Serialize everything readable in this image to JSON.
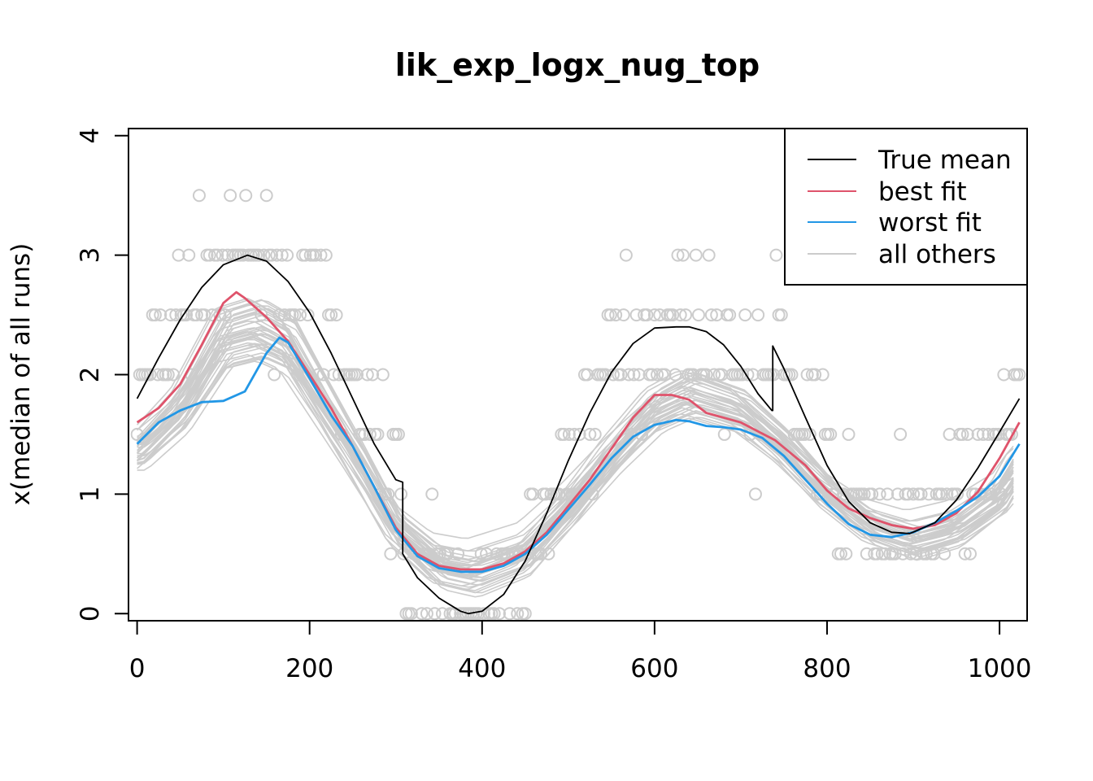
{
  "chart_data": {
    "type": "line",
    "title": "lik_exp_logx_nug_top",
    "xlabel": "",
    "ylabel": "x(median of all runs)",
    "xlim": [
      -10,
      1032
    ],
    "ylim": [
      -0.06,
      4.06
    ],
    "x_ticks": [
      "0",
      "200",
      "400",
      "600",
      "800",
      "1000"
    ],
    "y_ticks": [
      "0",
      "1",
      "2",
      "3",
      "4"
    ],
    "x_tick_values": [
      0,
      200,
      400,
      600,
      800,
      1000
    ],
    "y_tick_values": [
      0,
      1,
      2,
      3,
      4
    ],
    "grid": false,
    "legend_position": "top-right",
    "colors": {
      "true_mean": "#000000",
      "best_fit": "#DF536B",
      "worst_fit": "#2297E6",
      "others": "#CCCCCC",
      "points": "#CCCCCC"
    },
    "legend": [
      {
        "name": "True mean",
        "color": "#000000"
      },
      {
        "name": "best fit",
        "color": "#DF536B"
      },
      {
        "name": "worst fit",
        "color": "#2297E6"
      },
      {
        "name": "all others",
        "color": "#CCCCCC"
      }
    ],
    "series": [
      {
        "name": "True mean",
        "x": [
          0,
          25,
          50,
          75,
          100,
          128,
          150,
          175,
          200,
          225,
          250,
          275,
          300,
          308,
          308,
          325,
          350,
          375,
          384,
          400,
          425,
          450,
          475,
          500,
          525,
          550,
          575,
          600,
          625,
          640,
          660,
          680,
          700,
          720,
          736,
          737,
          737,
          750,
          775,
          800,
          825,
          850,
          875,
          896,
          925,
          950,
          975,
          1000,
          1023
        ],
        "y": [
          1.8,
          2.14,
          2.46,
          2.73,
          2.92,
          3.0,
          2.95,
          2.78,
          2.52,
          2.18,
          1.8,
          1.42,
          1.12,
          1.1,
          0.5,
          0.3,
          0.13,
          0.02,
          0.0,
          0.02,
          0.16,
          0.44,
          0.84,
          1.28,
          1.68,
          2.02,
          2.26,
          2.39,
          2.4,
          2.4,
          2.36,
          2.25,
          2.07,
          1.84,
          1.7,
          1.7,
          2.24,
          2.05,
          1.64,
          1.24,
          0.94,
          0.76,
          0.68,
          0.67,
          0.76,
          0.95,
          1.22,
          1.52,
          1.8
        ]
      },
      {
        "name": "best fit",
        "x": [
          0,
          25,
          50,
          75,
          100,
          115,
          125,
          150,
          175,
          200,
          225,
          250,
          275,
          300,
          325,
          350,
          375,
          400,
          425,
          450,
          475,
          500,
          525,
          550,
          575,
          600,
          620,
          640,
          660,
          700,
          740,
          775,
          800,
          825,
          850,
          875,
          900,
          925,
          950,
          975,
          1000,
          1023
        ],
        "y": [
          1.6,
          1.72,
          1.92,
          2.25,
          2.6,
          2.69,
          2.64,
          2.48,
          2.28,
          2.0,
          1.72,
          1.4,
          1.06,
          0.72,
          0.5,
          0.4,
          0.37,
          0.37,
          0.42,
          0.52,
          0.68,
          0.9,
          1.12,
          1.38,
          1.64,
          1.83,
          1.83,
          1.79,
          1.68,
          1.6,
          1.45,
          1.24,
          1.03,
          0.88,
          0.8,
          0.74,
          0.71,
          0.74,
          0.84,
          1.02,
          1.3,
          1.6
        ]
      },
      {
        "name": "worst fit",
        "x": [
          0,
          25,
          50,
          75,
          100,
          125,
          150,
          165,
          175,
          200,
          225,
          250,
          275,
          300,
          325,
          350,
          375,
          400,
          425,
          450,
          475,
          500,
          525,
          550,
          575,
          600,
          625,
          640,
          660,
          680,
          700,
          725,
          750,
          775,
          800,
          825,
          850,
          875,
          900,
          925,
          950,
          975,
          1000,
          1023
        ],
        "y": [
          1.42,
          1.6,
          1.7,
          1.77,
          1.78,
          1.86,
          2.18,
          2.31,
          2.27,
          1.97,
          1.66,
          1.4,
          1.06,
          0.7,
          0.48,
          0.38,
          0.35,
          0.35,
          0.4,
          0.5,
          0.66,
          0.87,
          1.08,
          1.3,
          1.48,
          1.58,
          1.62,
          1.61,
          1.57,
          1.56,
          1.54,
          1.47,
          1.32,
          1.12,
          0.92,
          0.75,
          0.66,
          0.64,
          0.68,
          0.76,
          0.86,
          0.98,
          1.15,
          1.42
        ]
      }
    ],
    "others_shape": {
      "x": [
        0,
        50,
        100,
        140,
        175,
        200,
        250,
        300,
        350,
        390,
        450,
        500,
        550,
        600,
        640,
        700,
        750,
        800,
        850,
        900,
        950,
        1000,
        1023
      ],
      "y": [
        1.35,
        1.7,
        2.3,
        2.38,
        2.25,
        1.95,
        1.35,
        0.72,
        0.4,
        0.34,
        0.5,
        0.88,
        1.32,
        1.7,
        1.84,
        1.7,
        1.4,
        1.02,
        0.74,
        0.62,
        0.72,
        0.98,
        1.25
      ]
    },
    "points_count": 1024
  }
}
